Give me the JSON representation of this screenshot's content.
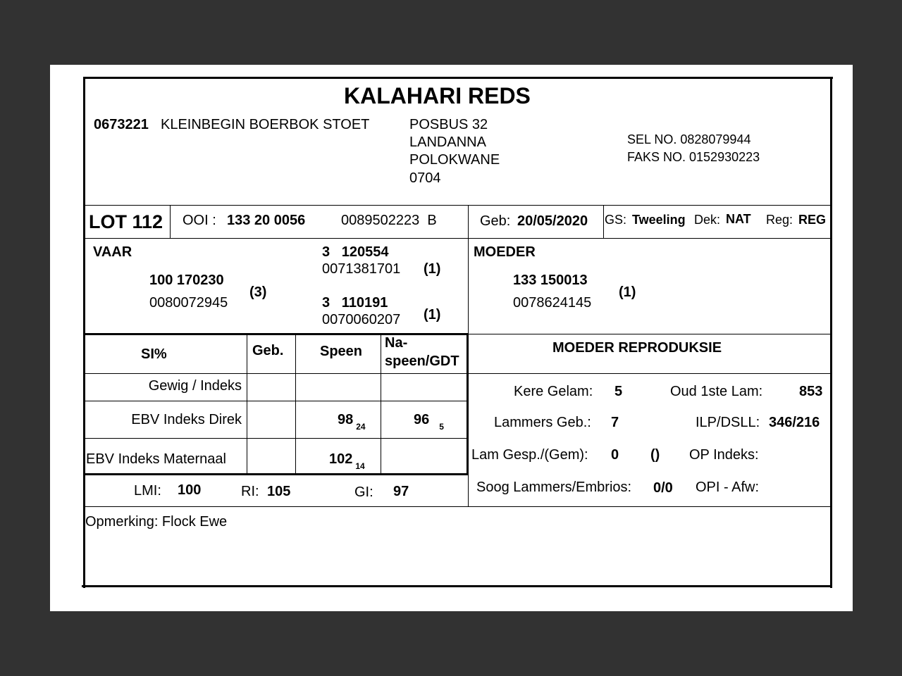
{
  "title": "KALAHARI REDS",
  "breeder": {
    "code": "0673221",
    "name": "KLEINBEGIN BOERBOK STOET",
    "address": [
      "POSBUS 32",
      "LANDANNA",
      "POLOKWANE",
      "0704"
    ],
    "phone": "SEL NO. 0828079944",
    "fax": "FAKS NO. 0152930223"
  },
  "lot": {
    "label": "LOT 112",
    "ooi_label": "OOI :",
    "ooi": "133 20 0056",
    "id": "0089502223  B",
    "geb_label": "Geb:",
    "geb": "20/05/2020",
    "gs_label": "GS:",
    "gs": "Tweeling",
    "dek_label": "Dek:",
    "dek": "NAT",
    "reg_label": "Reg:",
    "reg": "REG"
  },
  "vaar": {
    "label": "VAAR",
    "number": "100 170230",
    "id": "0080072945",
    "grade": "(3)",
    "sire": {
      "number": "3   120554",
      "id": "0071381701",
      "grade": "(1)"
    },
    "dam": {
      "number": "3   110191",
      "id": "0070060207",
      "grade": "(1)"
    }
  },
  "moeder": {
    "label": "MOEDER",
    "number": "133 150013",
    "id": "0078624145",
    "grade": "(1)"
  },
  "index_table": {
    "headers": [
      "SI%",
      "Geb.",
      "Speen",
      "Na-",
      "speen/GDT"
    ],
    "rows": [
      {
        "label": "Gewig / Indeks",
        "geb": "",
        "speen": "",
        "speen_sub": "",
        "na": "",
        "na_sub": ""
      },
      {
        "label": "EBV Indeks Direk",
        "geb": "",
        "speen": "98",
        "speen_sub": "24",
        "na": "96",
        "na_sub": "5"
      },
      {
        "label": "EBV Indeks Maternaal",
        "geb": "",
        "speen": "102",
        "speen_sub": "14",
        "na": "",
        "na_sub": ""
      }
    ]
  },
  "indices": {
    "lmi_label": "LMI:",
    "lmi": "100",
    "ri_label": "RI:",
    "ri": "105",
    "gi_label": "GI:",
    "gi": "97"
  },
  "reproduksie": {
    "title": "MOEDER REPRODUKSIE",
    "kere_label": "Kere Gelam:",
    "kere": "5",
    "oud_label": "Oud 1ste Lam:",
    "oud": "853",
    "lammers_label": "Lammers Geb.:",
    "lammers": "7",
    "ilp_label": "ILP/DSLL:",
    "ilp": "346/216",
    "gesp_label": "Lam Gesp./(Gem):",
    "gesp": "0",
    "gem": "()",
    "op_label": "OP Indeks:",
    "soog_label": "Soog Lammers/Embrios:",
    "soog": "0/0",
    "opi_label": "OPI - Afw:"
  },
  "remark": "Opmerking: Flock Ewe"
}
